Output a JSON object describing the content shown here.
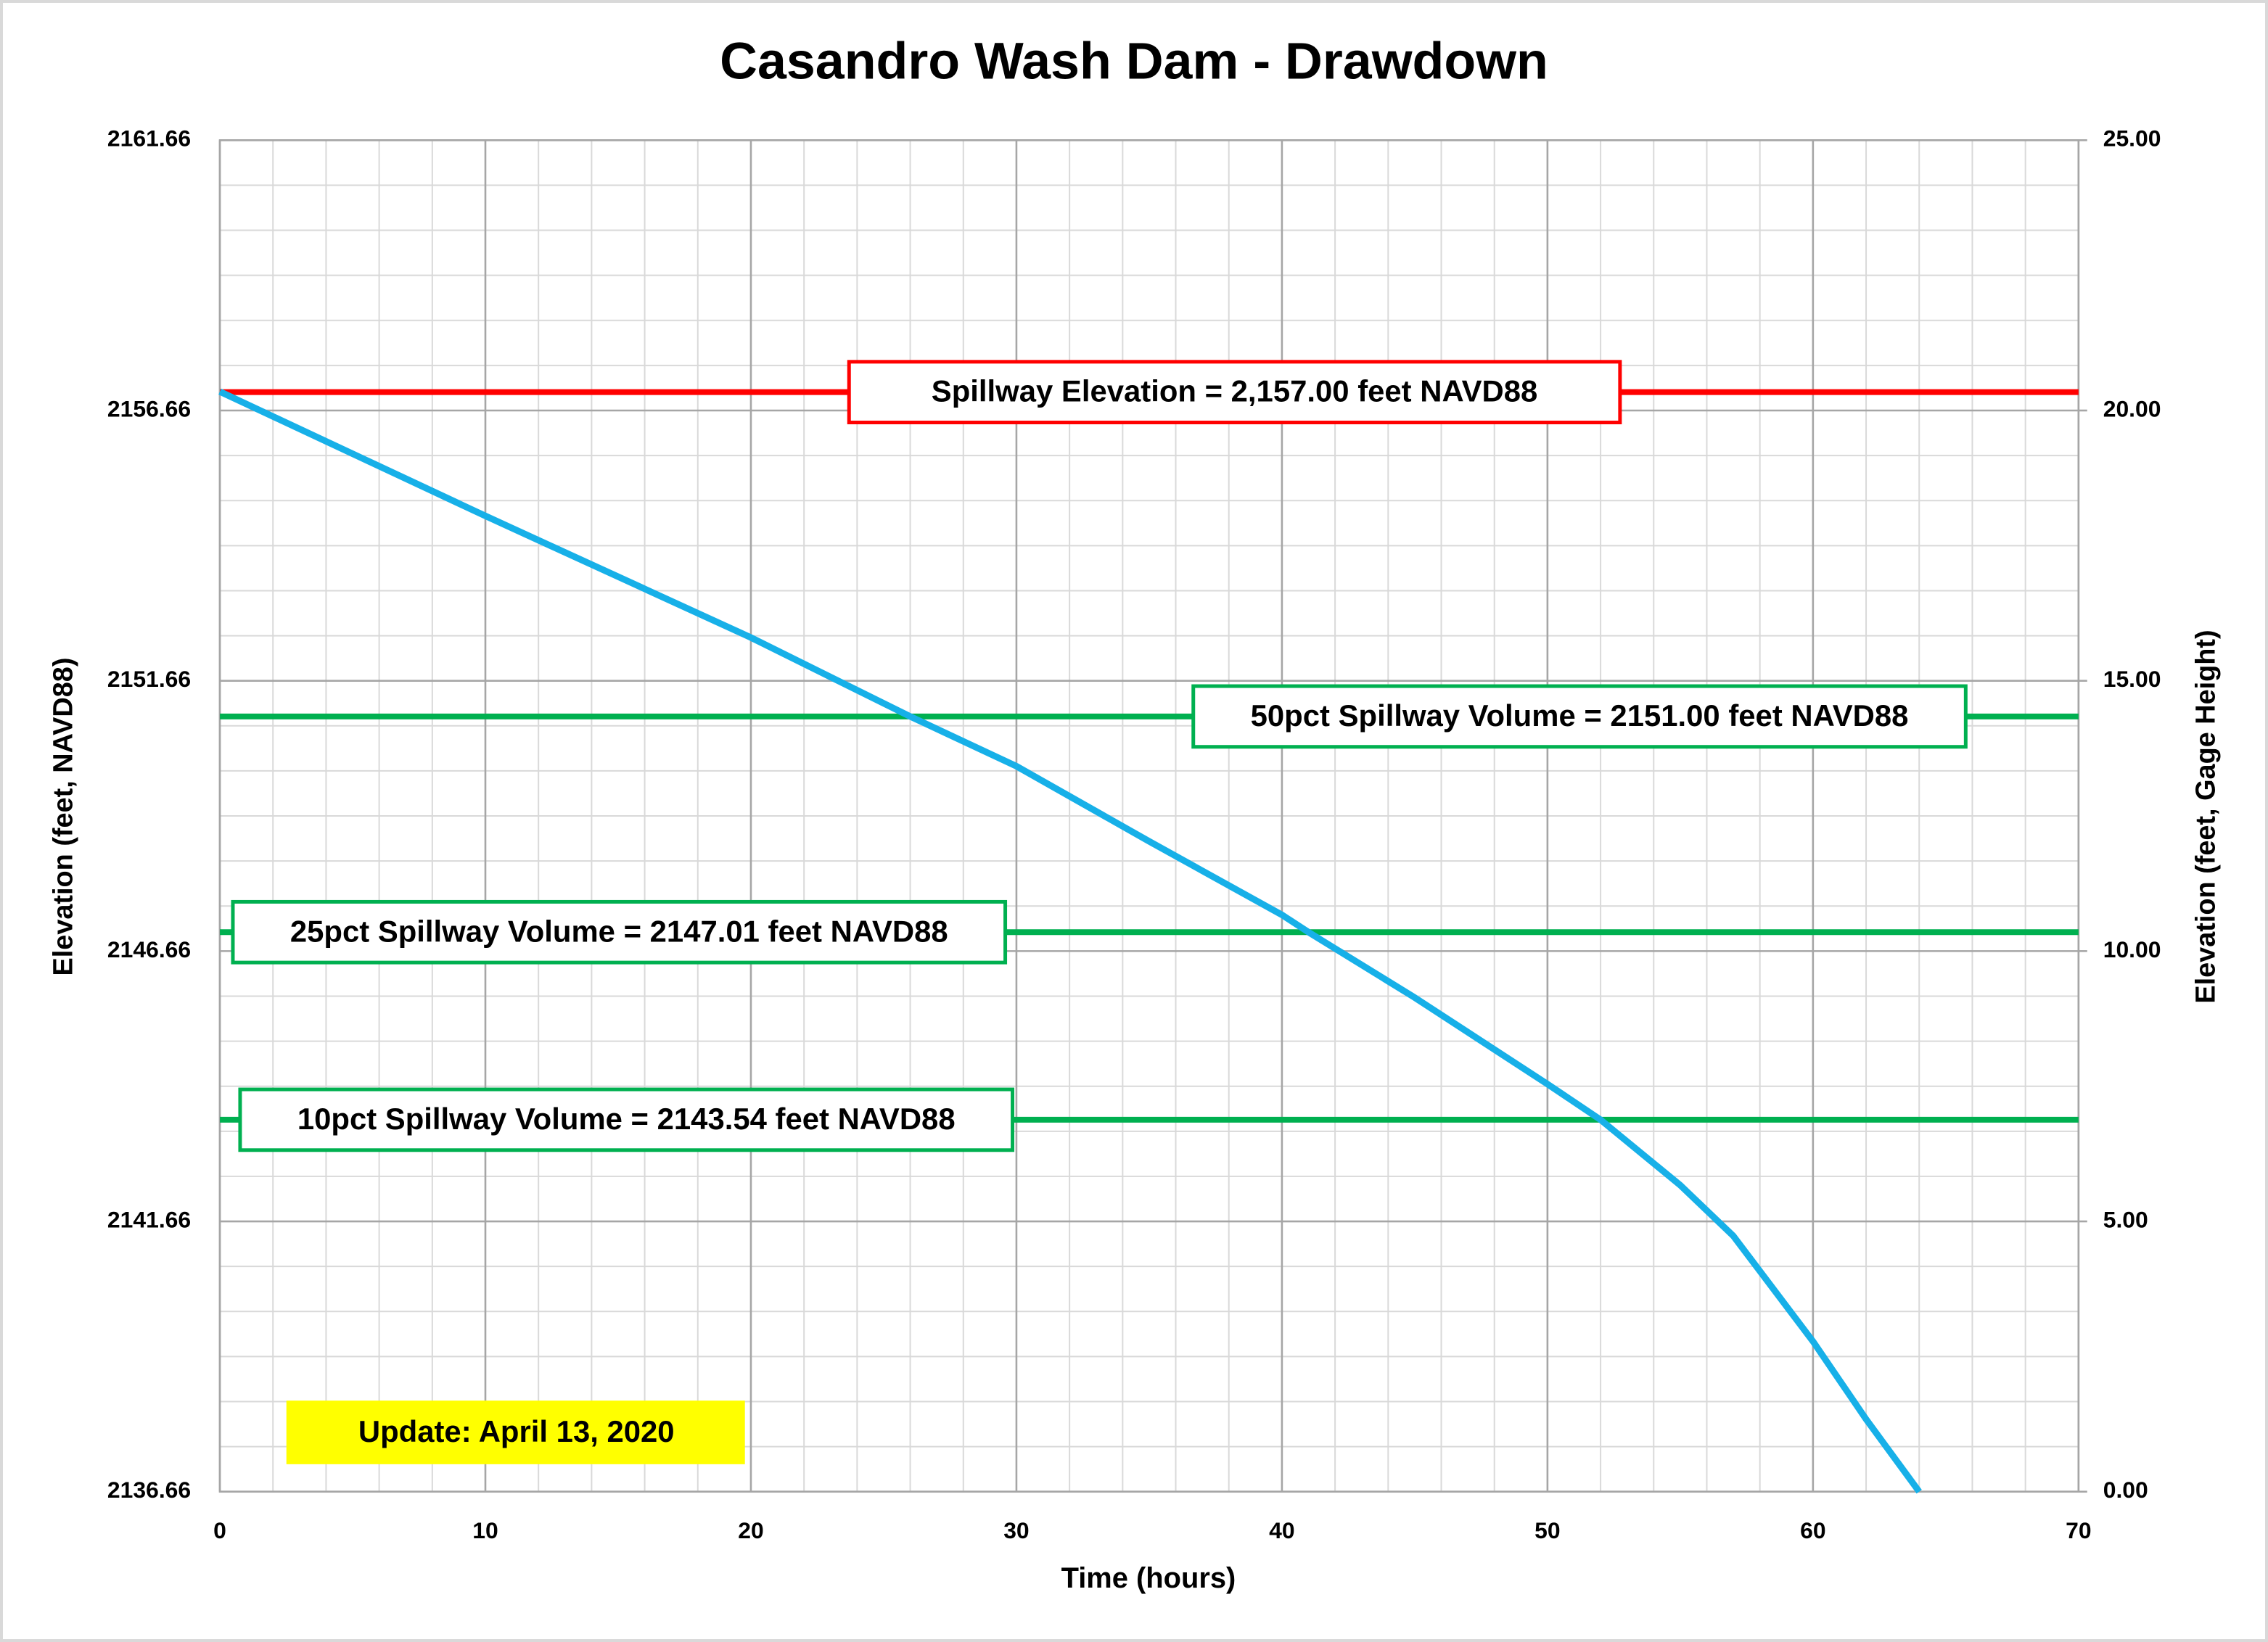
{
  "chart_data": {
    "type": "line",
    "title": "Casandro Wash Dam - Drawdown",
    "xlabel": "Time (hours)",
    "ylabel": "Elevation (feet, NAVD88)",
    "y2label": "Elevation (feet, Gage Height)",
    "x": [
      0,
      10,
      20,
      26,
      30,
      35,
      40,
      41,
      45,
      50,
      52,
      55,
      57,
      60,
      62,
      64
    ],
    "series": [
      {
        "name": "Elevation",
        "color": "#17b0e8",
        "values": [
          2157.01,
          2154.71,
          2152.46,
          2151.0,
          2150.08,
          2148.69,
          2147.33,
          2147.01,
          2145.8,
          2144.2,
          2143.54,
          2142.33,
          2141.39,
          2139.44,
          2138.0,
          2136.66
        ]
      }
    ],
    "xlim": [
      0,
      70
    ],
    "xticks": [
      0,
      10,
      20,
      30,
      40,
      50,
      60,
      70
    ],
    "ylim": [
      2136.66,
      2161.66
    ],
    "yticks": [
      2136.66,
      2141.66,
      2146.66,
      2151.66,
      2156.66,
      2161.66
    ],
    "y2lim": [
      0,
      25
    ],
    "y2ticks": [
      {
        "value": 0,
        "label": "0.00"
      },
      {
        "value": 5,
        "label": "5.00"
      },
      {
        "value": 10,
        "label": "10.00"
      },
      {
        "value": 15,
        "label": "15.00"
      },
      {
        "value": 20,
        "label": "20.00"
      },
      {
        "value": 25,
        "label": "25.00"
      }
    ],
    "grid": true,
    "minor_grid": true,
    "reference_lines": [
      {
        "value": 2157.0,
        "label": "Spillway Elevation = 2,157.00 feet NAVD88",
        "color": "#ff0000"
      },
      {
        "value": 2151.0,
        "label": "50pct Spillway Volume = 2151.00 feet NAVD88",
        "color": "#00b050"
      },
      {
        "value": 2147.01,
        "label": "25pct Spillway Volume = 2147.01 feet NAVD88",
        "color": "#00b050"
      },
      {
        "value": 2143.54,
        "label": "10pct Spillway Volume = 2143.54 feet NAVD88",
        "color": "#00b050"
      }
    ],
    "annotation": {
      "text": "Update: April 13, 2020",
      "color": "#ffff00"
    }
  }
}
